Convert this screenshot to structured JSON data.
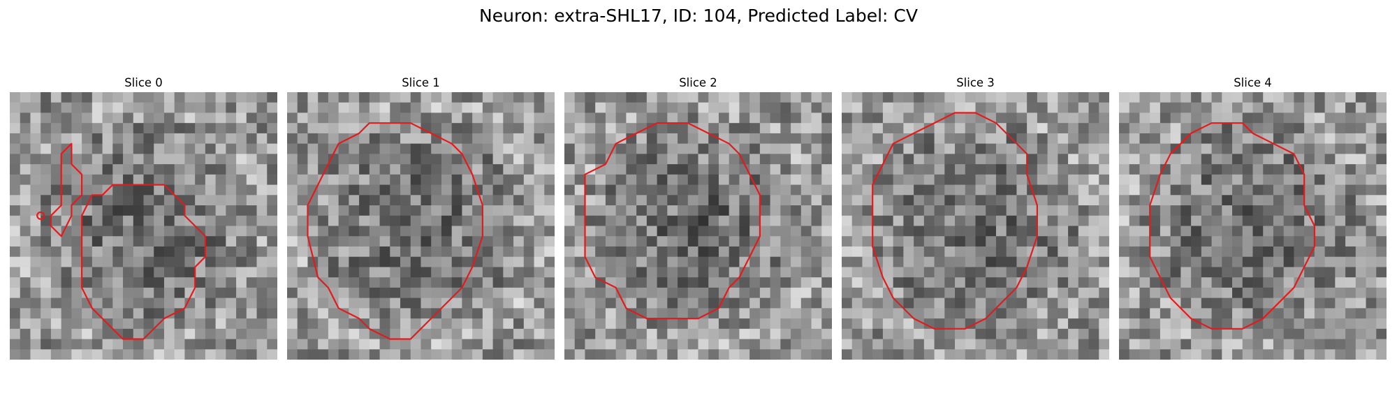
{
  "figure": {
    "title": "Neuron: extra-SHL17, ID: 104, Predicted Label: CV",
    "contour_color": "#e41a1c",
    "colormap": "gray"
  },
  "panels": [
    {
      "title": "Slice 0",
      "contour": [
        [
          13,
          9
        ],
        [
          10,
          9
        ],
        [
          9,
          10
        ],
        [
          8,
          10
        ],
        [
          7,
          12
        ],
        [
          7,
          19
        ],
        [
          8,
          21
        ],
        [
          9,
          22
        ],
        [
          11,
          24
        ],
        [
          13,
          24
        ],
        [
          14,
          23
        ],
        [
          15,
          22
        ],
        [
          17,
          21
        ],
        [
          18,
          19
        ],
        [
          18,
          17
        ],
        [
          19,
          16
        ],
        [
          19,
          14
        ],
        [
          18,
          13
        ],
        [
          17,
          12
        ],
        [
          17,
          11
        ],
        [
          16,
          10
        ],
        [
          15,
          9
        ]
      ],
      "extra_contour": [
        [
          5,
          9
        ],
        [
          5,
          11
        ],
        [
          4,
          12
        ],
        [
          4,
          13
        ],
        [
          5,
          14
        ],
        [
          6,
          12
        ],
        [
          6,
          11
        ],
        [
          7,
          10
        ],
        [
          7,
          8
        ],
        [
          6,
          7
        ],
        [
          6,
          6
        ],
        [
          6,
          5
        ],
        [
          5,
          6
        ],
        [
          5,
          8
        ]
      ],
      "marker": [
        3,
        12
      ]
    },
    {
      "title": "Slice 1",
      "contour": [
        [
          8,
          3
        ],
        [
          7,
          4
        ],
        [
          5,
          5
        ],
        [
          4,
          7
        ],
        [
          3,
          9
        ],
        [
          2,
          11
        ],
        [
          2,
          14
        ],
        [
          3,
          18
        ],
        [
          4,
          19
        ],
        [
          5,
          21
        ],
        [
          7,
          22
        ],
        [
          8,
          23
        ],
        [
          10,
          24
        ],
        [
          12,
          24
        ],
        [
          13,
          23
        ],
        [
          14,
          22
        ],
        [
          15,
          21
        ],
        [
          17,
          19
        ],
        [
          18,
          17
        ],
        [
          19,
          14
        ],
        [
          19,
          11
        ],
        [
          18,
          8
        ],
        [
          17,
          6
        ],
        [
          16,
          5
        ],
        [
          14,
          4
        ],
        [
          12,
          3
        ]
      ]
    },
    {
      "title": "Slice 2",
      "contour": [
        [
          9,
          3
        ],
        [
          7,
          4
        ],
        [
          5,
          5
        ],
        [
          4,
          7
        ],
        [
          2,
          8
        ],
        [
          2,
          13
        ],
        [
          2,
          16
        ],
        [
          3,
          18
        ],
        [
          5,
          19
        ],
        [
          6,
          21
        ],
        [
          8,
          22
        ],
        [
          10,
          22
        ],
        [
          13,
          22
        ],
        [
          15,
          21
        ],
        [
          16,
          19
        ],
        [
          17,
          18
        ],
        [
          18,
          16
        ],
        [
          19,
          14
        ],
        [
          19,
          10
        ],
        [
          18,
          8
        ],
        [
          17,
          6
        ],
        [
          16,
          5
        ],
        [
          14,
          4
        ],
        [
          12,
          3
        ]
      ]
    },
    {
      "title": "Slice 3",
      "contour": [
        [
          11,
          2
        ],
        [
          9,
          3
        ],
        [
          7,
          4
        ],
        [
          5,
          5
        ],
        [
          4,
          7
        ],
        [
          3,
          9
        ],
        [
          3,
          12
        ],
        [
          3,
          15
        ],
        [
          4,
          18
        ],
        [
          5,
          20
        ],
        [
          7,
          22
        ],
        [
          9,
          23
        ],
        [
          12,
          23
        ],
        [
          14,
          22
        ],
        [
          15,
          21
        ],
        [
          17,
          19
        ],
        [
          18,
          17
        ],
        [
          19,
          14
        ],
        [
          19,
          11
        ],
        [
          18,
          8
        ],
        [
          18,
          6
        ],
        [
          16,
          4
        ],
        [
          15,
          3
        ],
        [
          13,
          2
        ]
      ]
    },
    {
      "title": "Slice 4",
      "contour": [
        [
          9,
          3
        ],
        [
          7,
          4
        ],
        [
          6,
          5
        ],
        [
          5,
          6
        ],
        [
          4,
          8
        ],
        [
          3,
          11
        ],
        [
          3,
          13
        ],
        [
          3,
          16
        ],
        [
          4,
          18
        ],
        [
          5,
          20
        ],
        [
          7,
          22
        ],
        [
          9,
          23
        ],
        [
          12,
          23
        ],
        [
          14,
          22
        ],
        [
          15,
          21
        ],
        [
          17,
          19
        ],
        [
          18,
          17
        ],
        [
          19,
          15
        ],
        [
          19,
          13
        ],
        [
          18,
          11
        ],
        [
          18,
          8
        ],
        [
          17,
          6
        ],
        [
          15,
          5
        ],
        [
          13,
          4
        ],
        [
          12,
          3
        ]
      ]
    }
  ]
}
